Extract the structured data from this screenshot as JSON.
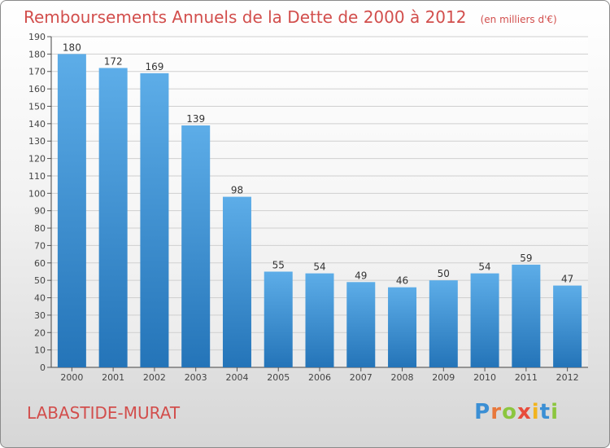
{
  "header": {
    "title": "Remboursements Annuels de la Dette de 2000 à 2012",
    "subtitle": "(en milliers d'€)"
  },
  "footer": {
    "commune": "LABASTIDE-MURAT",
    "brand": "Proxiti"
  },
  "colors": {
    "title": "#d24e4c",
    "bar_light": "#5dade8",
    "bar_dark": "#2474b8",
    "brand_letters": [
      "#3b8fd4",
      "#e8783c",
      "#8cc63f",
      "#e84c3c",
      "#f2b41e",
      "#3b8fd4",
      "#8cc63f"
    ]
  },
  "chart_data": {
    "type": "bar",
    "categories": [
      "2000",
      "2001",
      "2002",
      "2003",
      "2004",
      "2005",
      "2006",
      "2007",
      "2008",
      "2009",
      "2010",
      "2011",
      "2012"
    ],
    "values": [
      180,
      172,
      169,
      139,
      98,
      55,
      54,
      49,
      46,
      50,
      54,
      59,
      47
    ],
    "data_labels": [
      "180",
      "172",
      "169",
      "139",
      "98",
      "55",
      "54",
      "49",
      "46",
      "50",
      "54",
      "59",
      "47"
    ],
    "ylim": [
      0,
      190
    ],
    "yticks": [
      0,
      10,
      20,
      30,
      40,
      50,
      60,
      70,
      80,
      90,
      100,
      110,
      120,
      130,
      140,
      150,
      160,
      170,
      180,
      190
    ],
    "grid": true,
    "xlabel": "",
    "ylabel": ""
  }
}
